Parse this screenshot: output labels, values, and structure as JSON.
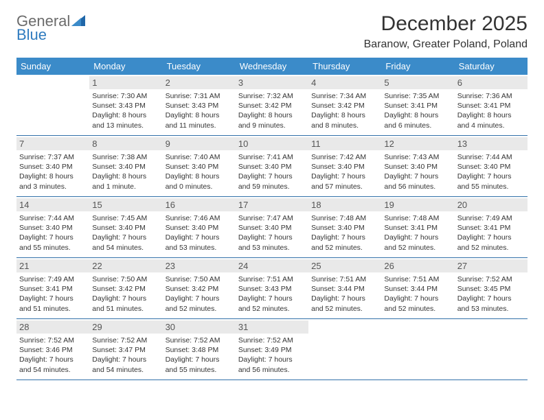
{
  "brand": {
    "part1": "General",
    "part2": "Blue"
  },
  "title": "December 2025",
  "location": "Baranow, Greater Poland, Poland",
  "colors": {
    "header_bg": "#3b8bc9",
    "header_text": "#ffffff",
    "daynum_bg": "#e9e9e9",
    "week_border": "#2f6fa8",
    "logo_gray": "#6b6b6b",
    "logo_blue": "#2f7bbf"
  },
  "day_names": [
    "Sunday",
    "Monday",
    "Tuesday",
    "Wednesday",
    "Thursday",
    "Friday",
    "Saturday"
  ],
  "weeks": [
    [
      {
        "n": "",
        "sr": "",
        "ss": "",
        "dl": ""
      },
      {
        "n": "1",
        "sr": "Sunrise: 7:30 AM",
        "ss": "Sunset: 3:43 PM",
        "dl": "Daylight: 8 hours and 13 minutes."
      },
      {
        "n": "2",
        "sr": "Sunrise: 7:31 AM",
        "ss": "Sunset: 3:43 PM",
        "dl": "Daylight: 8 hours and 11 minutes."
      },
      {
        "n": "3",
        "sr": "Sunrise: 7:32 AM",
        "ss": "Sunset: 3:42 PM",
        "dl": "Daylight: 8 hours and 9 minutes."
      },
      {
        "n": "4",
        "sr": "Sunrise: 7:34 AM",
        "ss": "Sunset: 3:42 PM",
        "dl": "Daylight: 8 hours and 8 minutes."
      },
      {
        "n": "5",
        "sr": "Sunrise: 7:35 AM",
        "ss": "Sunset: 3:41 PM",
        "dl": "Daylight: 8 hours and 6 minutes."
      },
      {
        "n": "6",
        "sr": "Sunrise: 7:36 AM",
        "ss": "Sunset: 3:41 PM",
        "dl": "Daylight: 8 hours and 4 minutes."
      }
    ],
    [
      {
        "n": "7",
        "sr": "Sunrise: 7:37 AM",
        "ss": "Sunset: 3:40 PM",
        "dl": "Daylight: 8 hours and 3 minutes."
      },
      {
        "n": "8",
        "sr": "Sunrise: 7:38 AM",
        "ss": "Sunset: 3:40 PM",
        "dl": "Daylight: 8 hours and 1 minute."
      },
      {
        "n": "9",
        "sr": "Sunrise: 7:40 AM",
        "ss": "Sunset: 3:40 PM",
        "dl": "Daylight: 8 hours and 0 minutes."
      },
      {
        "n": "10",
        "sr": "Sunrise: 7:41 AM",
        "ss": "Sunset: 3:40 PM",
        "dl": "Daylight: 7 hours and 59 minutes."
      },
      {
        "n": "11",
        "sr": "Sunrise: 7:42 AM",
        "ss": "Sunset: 3:40 PM",
        "dl": "Daylight: 7 hours and 57 minutes."
      },
      {
        "n": "12",
        "sr": "Sunrise: 7:43 AM",
        "ss": "Sunset: 3:40 PM",
        "dl": "Daylight: 7 hours and 56 minutes."
      },
      {
        "n": "13",
        "sr": "Sunrise: 7:44 AM",
        "ss": "Sunset: 3:40 PM",
        "dl": "Daylight: 7 hours and 55 minutes."
      }
    ],
    [
      {
        "n": "14",
        "sr": "Sunrise: 7:44 AM",
        "ss": "Sunset: 3:40 PM",
        "dl": "Daylight: 7 hours and 55 minutes."
      },
      {
        "n": "15",
        "sr": "Sunrise: 7:45 AM",
        "ss": "Sunset: 3:40 PM",
        "dl": "Daylight: 7 hours and 54 minutes."
      },
      {
        "n": "16",
        "sr": "Sunrise: 7:46 AM",
        "ss": "Sunset: 3:40 PM",
        "dl": "Daylight: 7 hours and 53 minutes."
      },
      {
        "n": "17",
        "sr": "Sunrise: 7:47 AM",
        "ss": "Sunset: 3:40 PM",
        "dl": "Daylight: 7 hours and 53 minutes."
      },
      {
        "n": "18",
        "sr": "Sunrise: 7:48 AM",
        "ss": "Sunset: 3:40 PM",
        "dl": "Daylight: 7 hours and 52 minutes."
      },
      {
        "n": "19",
        "sr": "Sunrise: 7:48 AM",
        "ss": "Sunset: 3:41 PM",
        "dl": "Daylight: 7 hours and 52 minutes."
      },
      {
        "n": "20",
        "sr": "Sunrise: 7:49 AM",
        "ss": "Sunset: 3:41 PM",
        "dl": "Daylight: 7 hours and 52 minutes."
      }
    ],
    [
      {
        "n": "21",
        "sr": "Sunrise: 7:49 AM",
        "ss": "Sunset: 3:41 PM",
        "dl": "Daylight: 7 hours and 51 minutes."
      },
      {
        "n": "22",
        "sr": "Sunrise: 7:50 AM",
        "ss": "Sunset: 3:42 PM",
        "dl": "Daylight: 7 hours and 51 minutes."
      },
      {
        "n": "23",
        "sr": "Sunrise: 7:50 AM",
        "ss": "Sunset: 3:42 PM",
        "dl": "Daylight: 7 hours and 52 minutes."
      },
      {
        "n": "24",
        "sr": "Sunrise: 7:51 AM",
        "ss": "Sunset: 3:43 PM",
        "dl": "Daylight: 7 hours and 52 minutes."
      },
      {
        "n": "25",
        "sr": "Sunrise: 7:51 AM",
        "ss": "Sunset: 3:44 PM",
        "dl": "Daylight: 7 hours and 52 minutes."
      },
      {
        "n": "26",
        "sr": "Sunrise: 7:51 AM",
        "ss": "Sunset: 3:44 PM",
        "dl": "Daylight: 7 hours and 52 minutes."
      },
      {
        "n": "27",
        "sr": "Sunrise: 7:52 AM",
        "ss": "Sunset: 3:45 PM",
        "dl": "Daylight: 7 hours and 53 minutes."
      }
    ],
    [
      {
        "n": "28",
        "sr": "Sunrise: 7:52 AM",
        "ss": "Sunset: 3:46 PM",
        "dl": "Daylight: 7 hours and 54 minutes."
      },
      {
        "n": "29",
        "sr": "Sunrise: 7:52 AM",
        "ss": "Sunset: 3:47 PM",
        "dl": "Daylight: 7 hours and 54 minutes."
      },
      {
        "n": "30",
        "sr": "Sunrise: 7:52 AM",
        "ss": "Sunset: 3:48 PM",
        "dl": "Daylight: 7 hours and 55 minutes."
      },
      {
        "n": "31",
        "sr": "Sunrise: 7:52 AM",
        "ss": "Sunset: 3:49 PM",
        "dl": "Daylight: 7 hours and 56 minutes."
      },
      {
        "n": "",
        "sr": "",
        "ss": "",
        "dl": ""
      },
      {
        "n": "",
        "sr": "",
        "ss": "",
        "dl": ""
      },
      {
        "n": "",
        "sr": "",
        "ss": "",
        "dl": ""
      }
    ]
  ]
}
